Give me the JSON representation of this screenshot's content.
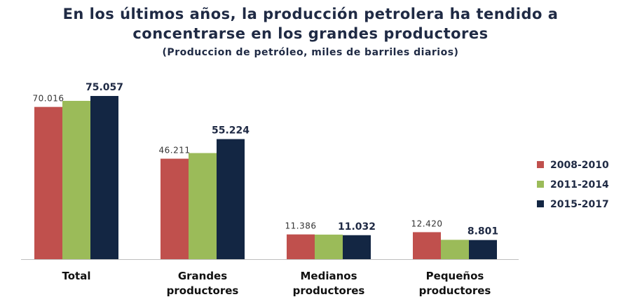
{
  "chart_data": {
    "type": "bar",
    "title_line1": "En los últimos años, la producción  petrolera ha tendido a",
    "title_line2": "concentrarse  en los grandes productores",
    "subtitle": "(Produccion de petróleo, miles de barriles diarios)",
    "categories": [
      [
        "Total"
      ],
      [
        "Grandes",
        "productores"
      ],
      [
        "Medianos",
        "productores"
      ],
      [
        "Pequeños",
        "productores"
      ]
    ],
    "series": [
      {
        "name": "2008-2010",
        "color": "#c0504d",
        "values": [
          70016,
          46211,
          11386,
          12420
        ]
      },
      {
        "name": "2011-2014",
        "color": "#9bbb59",
        "values": [
          72800,
          48800,
          11300,
          8900
        ]
      },
      {
        "name": "2015-2017",
        "color": "#132643",
        "values": [
          75057,
          55224,
          11032,
          8801
        ]
      }
    ],
    "data_labels": [
      {
        "series": 0,
        "category": 0,
        "text": "70.016",
        "style": "normal"
      },
      {
        "series": 2,
        "category": 0,
        "text": "75.057",
        "style": "bold"
      },
      {
        "series": 0,
        "category": 1,
        "text": "46.211",
        "style": "normal"
      },
      {
        "series": 2,
        "category": 1,
        "text": "55.224",
        "style": "bold"
      },
      {
        "series": 0,
        "category": 2,
        "text": "11.386",
        "style": "normal"
      },
      {
        "series": 2,
        "category": 2,
        "text": "11.032",
        "style": "bold"
      },
      {
        "series": 0,
        "category": 3,
        "text": "12.420",
        "style": "normal"
      },
      {
        "series": 2,
        "category": 3,
        "text": "8.801",
        "style": "bold"
      }
    ],
    "ylim": [
      0,
      75057
    ],
    "grid": false,
    "legend_position": "right"
  }
}
